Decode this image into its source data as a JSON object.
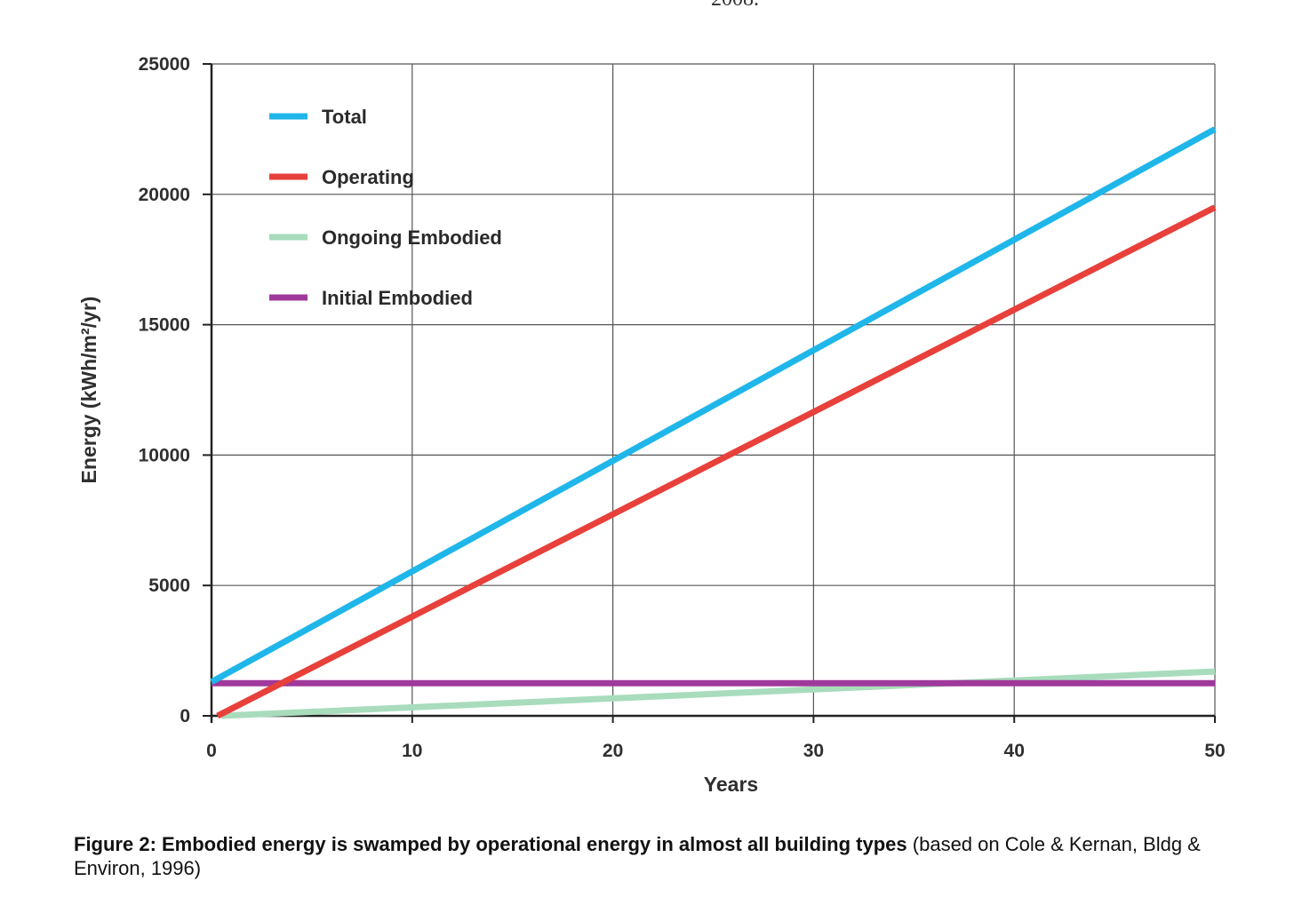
{
  "page_header_fragment": "2008.",
  "chart_data": {
    "type": "line",
    "title": "",
    "xlabel": "Years",
    "ylabel": "Energy (kWh/m²/yr)",
    "xlim": [
      0,
      50
    ],
    "ylim": [
      0,
      25000
    ],
    "xticks": [
      "0",
      "10",
      "20",
      "30",
      "40",
      "50"
    ],
    "yticks": [
      "0",
      "5000",
      "10000",
      "15000",
      "20000",
      "25000"
    ],
    "grid": true,
    "legend_position": "top-left",
    "series": [
      {
        "name": "Total",
        "color": "#1fb6ea",
        "x": [
          0,
          50
        ],
        "y": [
          1300,
          22500
        ]
      },
      {
        "name": "Operating",
        "color": "#e8403a",
        "x": [
          0.3,
          50
        ],
        "y": [
          0,
          19500
        ]
      },
      {
        "name": "Ongoing Embodied",
        "color": "#a8dcbc",
        "x": [
          0.5,
          50
        ],
        "y": [
          0,
          1700
        ]
      },
      {
        "name": "Initial Embodied",
        "color": "#a0399c",
        "x": [
          0,
          50
        ],
        "y": [
          1250,
          1250
        ]
      }
    ]
  },
  "caption": {
    "bold": "Figure 2: Embodied energy is swamped by operational energy in almost all building types",
    "normal": " (based on Cole & Kernan, Bldg & Environ, 1996)"
  }
}
